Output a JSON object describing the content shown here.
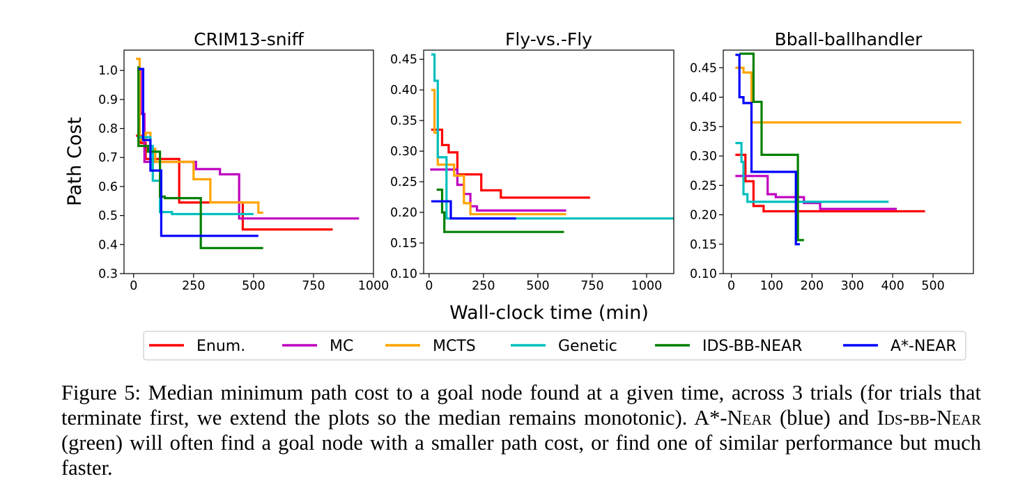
{
  "chart_data": {
    "type": "line",
    "shared_xlabel": "Wall-clock time (min)",
    "shared_ylabel": "Path Cost",
    "step": true,
    "legend": {
      "placement": "bottom",
      "entries": [
        {
          "name": "Enum.",
          "color": "#ff0000"
        },
        {
          "name": "MC",
          "color": "#bf00bf"
        },
        {
          "name": "MCTS",
          "color": "#ffa500"
        },
        {
          "name": "Genetic",
          "color": "#00bfbf"
        },
        {
          "name": "IDS-BB-NEAR",
          "color": "#008000"
        },
        {
          "name": "A*-NEAR",
          "color": "#0000ff"
        }
      ]
    },
    "panels": [
      {
        "title": "CRIM13-sniff",
        "xlim": [
          -40,
          1000
        ],
        "ylim": [
          0.3,
          1.07
        ],
        "xticks": [
          0,
          250,
          500,
          750,
          1000
        ],
        "xticklabels": [
          "0",
          "250",
          "500",
          "750",
          "1000"
        ],
        "yticks": [
          0.3,
          0.4,
          0.5,
          0.6,
          0.7,
          0.8,
          0.9,
          1.0
        ],
        "yticklabels": [
          "0.3",
          "0.4",
          "0.5",
          "0.6",
          "0.7",
          "0.8",
          "0.9",
          "1.0"
        ],
        "series": [
          {
            "name": "Enum.",
            "points": [
              [
                10,
                0.775
              ],
              [
                30,
                0.775
              ],
              [
                30,
                0.75
              ],
              [
                50,
                0.75
              ],
              [
                50,
                0.695
              ],
              [
                190,
                0.695
              ],
              [
                190,
                0.545
              ],
              [
                455,
                0.545
              ],
              [
                455,
                0.452
              ],
              [
                830,
                0.452
              ]
            ]
          },
          {
            "name": "MC",
            "points": [
              [
                20,
                1.0
              ],
              [
                30,
                1.0
              ],
              [
                30,
                0.85
              ],
              [
                45,
                0.85
              ],
              [
                45,
                0.685
              ],
              [
                260,
                0.685
              ],
              [
                260,
                0.66
              ],
              [
                360,
                0.66
              ],
              [
                360,
                0.642
              ],
              [
                440,
                0.642
              ],
              [
                440,
                0.49
              ],
              [
                940,
                0.49
              ]
            ]
          },
          {
            "name": "MCTS",
            "points": [
              [
                10,
                1.04
              ],
              [
                25,
                1.04
              ],
              [
                25,
                0.76
              ],
              [
                50,
                0.76
              ],
              [
                50,
                0.785
              ],
              [
                70,
                0.785
              ],
              [
                70,
                0.73
              ],
              [
                90,
                0.73
              ],
              [
                90,
                0.685
              ],
              [
                250,
                0.685
              ],
              [
                250,
                0.625
              ],
              [
                320,
                0.625
              ],
              [
                320,
                0.545
              ],
              [
                520,
                0.545
              ],
              [
                520,
                0.51
              ],
              [
                540,
                0.51
              ]
            ]
          },
          {
            "name": "Genetic",
            "points": [
              [
                15,
                0.77
              ],
              [
                70,
                0.77
              ],
              [
                70,
                0.74
              ],
              [
                80,
                0.74
              ],
              [
                80,
                0.62
              ],
              [
                110,
                0.62
              ],
              [
                110,
                0.512
              ],
              [
                160,
                0.512
              ],
              [
                160,
                0.505
              ],
              [
                500,
                0.505
              ]
            ]
          },
          {
            "name": "IDS-BB-NEAR",
            "points": [
              [
                15,
                1.01
              ],
              [
                20,
                1.01
              ],
              [
                20,
                0.74
              ],
              [
                60,
                0.74
              ],
              [
                60,
                0.72
              ],
              [
                110,
                0.72
              ],
              [
                110,
                0.565
              ],
              [
                130,
                0.565
              ],
              [
                130,
                0.56
              ],
              [
                280,
                0.56
              ],
              [
                280,
                0.388
              ],
              [
                540,
                0.388
              ]
            ]
          },
          {
            "name": "A*-NEAR",
            "points": [
              [
                20,
                1.005
              ],
              [
                40,
                1.005
              ],
              [
                40,
                0.76
              ],
              [
                70,
                0.76
              ],
              [
                70,
                0.655
              ],
              [
                115,
                0.655
              ],
              [
                115,
                0.43
              ],
              [
                520,
                0.43
              ]
            ]
          }
        ]
      },
      {
        "title": "Fly-vs.-Fly",
        "xlim": [
          -25,
          1125
        ],
        "ylim": [
          0.1,
          0.465
        ],
        "xticks": [
          0,
          250,
          500,
          750,
          1000
        ],
        "xticklabels": [
          "0",
          "250",
          "500",
          "750",
          "1000"
        ],
        "yticks": [
          0.1,
          0.15,
          0.2,
          0.25,
          0.3,
          0.35,
          0.4,
          0.45
        ],
        "yticklabels": [
          "0.10",
          "0.15",
          "0.20",
          "0.25",
          "0.30",
          "0.35",
          "0.40",
          "0.45"
        ],
        "series": [
          {
            "name": "Enum.",
            "points": [
              [
                10,
                0.335
              ],
              [
                60,
                0.335
              ],
              [
                60,
                0.31
              ],
              [
                90,
                0.31
              ],
              [
                90,
                0.298
              ],
              [
                130,
                0.298
              ],
              [
                130,
                0.262
              ],
              [
                240,
                0.262
              ],
              [
                240,
                0.236
              ],
              [
                330,
                0.236
              ],
              [
                330,
                0.224
              ],
              [
                740,
                0.224
              ]
            ]
          },
          {
            "name": "MC",
            "points": [
              [
                5,
                0.27
              ],
              [
                130,
                0.27
              ],
              [
                130,
                0.245
              ],
              [
                160,
                0.245
              ],
              [
                160,
                0.23
              ],
              [
                190,
                0.23
              ],
              [
                190,
                0.21
              ],
              [
                220,
                0.21
              ],
              [
                220,
                0.203
              ],
              [
                630,
                0.203
              ]
            ]
          },
          {
            "name": "MCTS",
            "points": [
              [
                10,
                0.4
              ],
              [
                25,
                0.4
              ],
              [
                25,
                0.33
              ],
              [
                40,
                0.33
              ],
              [
                40,
                0.278
              ],
              [
                115,
                0.278
              ],
              [
                115,
                0.26
              ],
              [
                160,
                0.26
              ],
              [
                160,
                0.215
              ],
              [
                190,
                0.215
              ],
              [
                190,
                0.197
              ],
              [
                630,
                0.197
              ]
            ]
          },
          {
            "name": "Genetic",
            "points": [
              [
                10,
                0.458
              ],
              [
                25,
                0.458
              ],
              [
                25,
                0.415
              ],
              [
                40,
                0.415
              ],
              [
                40,
                0.29
              ],
              [
                80,
                0.29
              ],
              [
                80,
                0.19
              ],
              [
                1130,
                0.19
              ]
            ]
          },
          {
            "name": "IDS-BB-NEAR",
            "points": [
              [
                35,
                0.237
              ],
              [
                60,
                0.237
              ],
              [
                60,
                0.2
              ],
              [
                70,
                0.2
              ],
              [
                70,
                0.168
              ],
              [
                620,
                0.168
              ]
            ]
          },
          {
            "name": "A*-NEAR",
            "points": [
              [
                10,
                0.218
              ],
              [
                100,
                0.218
              ],
              [
                100,
                0.19
              ],
              [
                400,
                0.19
              ]
            ]
          }
        ]
      },
      {
        "title": "Bball-ballhandler",
        "xlim": [
          -20,
          600
        ],
        "ylim": [
          0.1,
          0.48
        ],
        "xticks": [
          0,
          100,
          200,
          300,
          400,
          500
        ],
        "xticklabels": [
          "0",
          "100",
          "200",
          "300",
          "400",
          "500"
        ],
        "yticks": [
          0.1,
          0.15,
          0.2,
          0.25,
          0.3,
          0.35,
          0.4,
          0.45
        ],
        "yticklabels": [
          "0.10",
          "0.15",
          "0.20",
          "0.25",
          "0.30",
          "0.35",
          "0.40",
          "0.45"
        ],
        "series": [
          {
            "name": "Enum.",
            "points": [
              [
                10,
                0.302
              ],
              [
                35,
                0.302
              ],
              [
                35,
                0.257
              ],
              [
                55,
                0.257
              ],
              [
                55,
                0.215
              ],
              [
                80,
                0.215
              ],
              [
                80,
                0.206
              ],
              [
                480,
                0.206
              ]
            ]
          },
          {
            "name": "MC",
            "points": [
              [
                10,
                0.266
              ],
              [
                90,
                0.266
              ],
              [
                90,
                0.235
              ],
              [
                110,
                0.235
              ],
              [
                110,
                0.23
              ],
              [
                180,
                0.23
              ],
              [
                180,
                0.22
              ],
              [
                220,
                0.22
              ],
              [
                220,
                0.21
              ],
              [
                410,
                0.21
              ]
            ]
          },
          {
            "name": "MCTS",
            "points": [
              [
                10,
                0.45
              ],
              [
                30,
                0.45
              ],
              [
                30,
                0.442
              ],
              [
                50,
                0.442
              ],
              [
                50,
                0.357
              ],
              [
                570,
                0.357
              ]
            ]
          },
          {
            "name": "Genetic",
            "points": [
              [
                10,
                0.322
              ],
              [
                25,
                0.322
              ],
              [
                25,
                0.29
              ],
              [
                30,
                0.29
              ],
              [
                30,
                0.235
              ],
              [
                40,
                0.235
              ],
              [
                40,
                0.222
              ],
              [
                390,
                0.222
              ]
            ]
          },
          {
            "name": "IDS-BB-NEAR",
            "points": [
              [
                20,
                0.474
              ],
              [
                55,
                0.474
              ],
              [
                55,
                0.392
              ],
              [
                75,
                0.392
              ],
              [
                75,
                0.302
              ],
              [
                165,
                0.302
              ],
              [
                165,
                0.157
              ],
              [
                180,
                0.157
              ]
            ]
          },
          {
            "name": "A*-NEAR",
            "points": [
              [
                10,
                0.472
              ],
              [
                20,
                0.472
              ],
              [
                20,
                0.4
              ],
              [
                30,
                0.4
              ],
              [
                30,
                0.39
              ],
              [
                50,
                0.39
              ],
              [
                50,
                0.273
              ],
              [
                160,
                0.273
              ],
              [
                160,
                0.15
              ],
              [
                170,
                0.15
              ]
            ]
          }
        ]
      }
    ]
  },
  "caption": {
    "label": "Figure 5: Median minimum path cost to a goal node found at a given time, across 3 trials (for trials that terminate first, we extend the plots so the median remains monotonic). A*-N",
    "astar_sc": "ear",
    "mid1": " (blue) and I",
    "ids_sc": "ds-bb-",
    "mid2": "N",
    "near_sc": "ear",
    "tail": " (green) will often find a goal node with a smaller path cost, or find one of similar performance but much faster."
  }
}
